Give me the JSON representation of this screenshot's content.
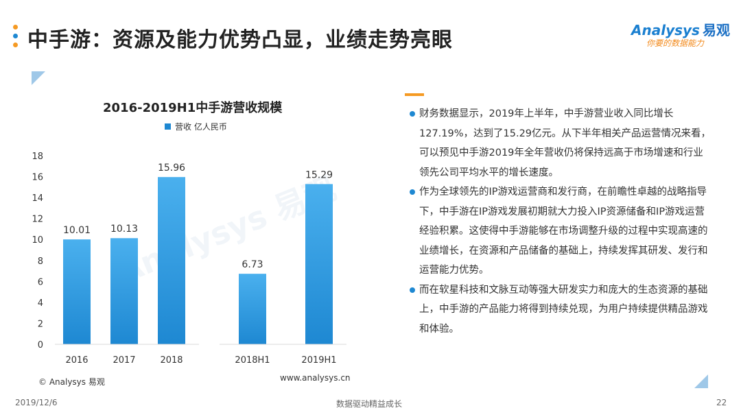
{
  "header": {
    "title": "中手游：资源及能力优势凸显，业绩走势亮眼",
    "dot_colors": [
      "#f59a23",
      "#1e88d2",
      "#f59a23"
    ]
  },
  "logo": {
    "line1": "Analysys",
    "line1_cn": "易观",
    "line2": "你要的数据能力"
  },
  "watermark": "Analysys 易观",
  "chart_data": {
    "type": "bar",
    "title": "2016-2019H1中手游营收规模",
    "legend": "营收 亿人民币",
    "categories": [
      "2016",
      "2017",
      "2018",
      "2018H1",
      "2019H1"
    ],
    "series": [
      {
        "name": "营收 亿人民币",
        "values": [
          10.01,
          10.13,
          15.96,
          6.73,
          15.29
        ]
      }
    ],
    "data_labels": [
      "10.01",
      "10.13",
      "15.96",
      "6.73",
      "15.29"
    ],
    "y_ticks": [
      "0",
      "2",
      "4",
      "6",
      "8",
      "10",
      "12",
      "14",
      "16",
      "18"
    ],
    "ylim": [
      0,
      18
    ],
    "grid": false,
    "legend_position": "top",
    "bar_color": "#1e88d2",
    "bar_color_light": "#4ab0ee"
  },
  "chart_footer": {
    "source": "© Analysys 易观",
    "url": "www.analysys.cn"
  },
  "bullets": [
    "财务数据显示，2019年上半年，中手游营业收入同比增长127.19%，达到了15.29亿元。从下半年相关产品运营情况来看，可以预见中手游2019年全年营收仍将保持远高于市场增速和行业领先公司平均水平的增长速度。",
    "作为全球领先的IP游戏运营商和发行商，在前瞻性卓越的战略指导下，中手游在IP游戏发展初期就大力投入IP资源储备和IP游戏运营经验积累。这使得中手游能够在市场调整升级的过程中实现高速的业绩增长，在资源和产品储备的基础上，持续发挥其研发、发行和运营能力优势。",
    "而在软星科技和文脉互动等强大研发实力和庞大的生态资源的基础上，中手游的产品能力将得到持续兑现，为用户持续提供精品游戏和体验。"
  ],
  "footer": {
    "date": "2019/12/6",
    "center": "数据驱动精益成长",
    "page": "22"
  }
}
